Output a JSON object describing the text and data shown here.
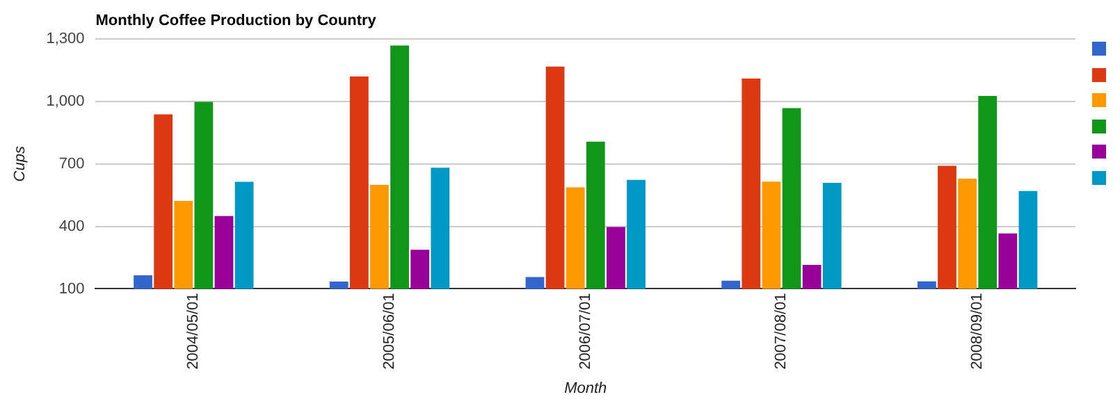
{
  "chart_data": {
    "type": "bar",
    "title": "Monthly Coffee Production by Country",
    "xlabel": "Month",
    "ylabel": "Cups",
    "categories": [
      "2004/05/01",
      "2005/06/01",
      "2006/07/01",
      "2007/08/01",
      "2008/09/01"
    ],
    "series": [
      {
        "color": "#3366cc",
        "values": [
          165,
          135,
          157,
          139,
          136
        ]
      },
      {
        "color": "#dc3912",
        "values": [
          938,
          1120,
          1167,
          1110,
          691
        ]
      },
      {
        "color": "#ff9900",
        "values": [
          522,
          599,
          587,
          615,
          629
        ]
      },
      {
        "color": "#109618",
        "values": [
          998,
          1268,
          807,
          968,
          1026
        ]
      },
      {
        "color": "#990099",
        "values": [
          450,
          288,
          397,
          215,
          366
        ]
      },
      {
        "color": "#0099c6",
        "values": [
          614,
          682,
          623,
          609,
          570
        ]
      }
    ],
    "ylim": [
      100,
      1300
    ],
    "yticks": [
      100,
      400,
      700,
      {
        "value": 1000,
        "label": "1,000"
      },
      {
        "value": 1300,
        "label": "1,300"
      }
    ],
    "grid": "y"
  }
}
